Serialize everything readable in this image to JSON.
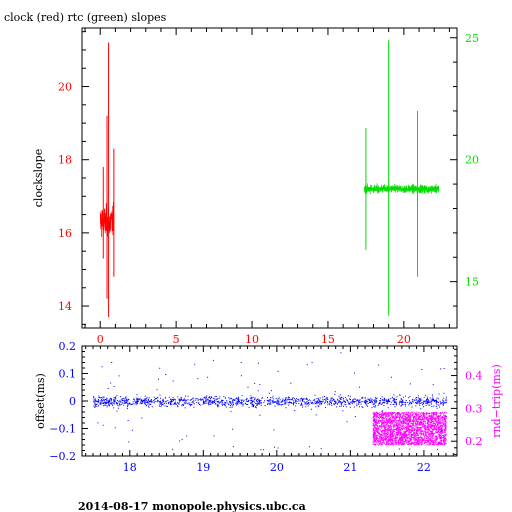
{
  "title": "clock (red) rtc (green) slopes",
  "footer": "2014-08-17 monopole.physics.ubc.ca",
  "colors": {
    "red": "#ff0000",
    "green": "#00dd00",
    "blue": "#0000ff",
    "magenta": "#ff00ff",
    "black": "#000000"
  },
  "chart_data": [
    {
      "type": "line",
      "title": "clock (red) rtc (green) slopes",
      "xlabel": "",
      "ylabel": "clockslope",
      "xlim": [
        -1.2,
        23.5
      ],
      "x_ticks": [
        "0",
        "5",
        "10",
        "15",
        "20"
      ],
      "y_left": {
        "lim": [
          13.4,
          21.6
        ],
        "ticks": [
          "14",
          "16",
          "18",
          "20"
        ],
        "color": "#ff0000"
      },
      "y_right": {
        "lim": [
          13.1,
          25.4
        ],
        "ticks": [
          "15",
          "20",
          "25"
        ],
        "color": "#00dd00"
      },
      "grid": false,
      "series": [
        {
          "name": "clock",
          "color": "#ff0000",
          "axis": "left",
          "x_range": [
            0.0,
            0.9
          ],
          "center": 16.3,
          "spikes": [
            {
              "x": 0.55,
              "y_min": 13.7,
              "y_max": 21.2
            },
            {
              "x": 0.45,
              "y_min": 14.2,
              "y_max": 19.2
            },
            {
              "x": 0.9,
              "y_min": 14.8,
              "y_max": 18.3
            },
            {
              "x": 0.2,
              "y_min": 15.3,
              "y_max": 17.8
            }
          ]
        },
        {
          "name": "rtc",
          "color": "#00dd00",
          "axis": "right",
          "x_range": [
            17.4,
            22.3
          ],
          "center": 18.8,
          "spikes": [
            {
              "x": 17.5,
              "y_min": 16.3,
              "y_max": 21.3
            },
            {
              "x": 19.0,
              "y_min": 13.6,
              "y_max": 24.9
            },
            {
              "x": 20.9,
              "y_min": 15.2,
              "y_max": 22.0
            }
          ]
        }
      ]
    },
    {
      "type": "scatter",
      "ylabel": "offset(ms)",
      "ylabel_right": "rnd−trip(ms)",
      "xlim": [
        17.35,
        22.45
      ],
      "x_ticks": [
        "18",
        "19",
        "20",
        "21",
        "22"
      ],
      "y_left": {
        "lim": [
          -0.2,
          0.2
        ],
        "ticks": [
          "−0.2",
          "−0.1",
          "0",
          "0.1",
          "0.2"
        ],
        "color": "#0000ff"
      },
      "y_right": {
        "lim": [
          0.155,
          0.49
        ],
        "ticks": [
          "0.2",
          "0.3",
          "0.4"
        ],
        "color": "#ff00ff"
      },
      "series": [
        {
          "name": "offset",
          "color": "#0000ff",
          "axis": "left",
          "x_range": [
            17.5,
            22.3
          ],
          "center": 0.0,
          "band": 0.02,
          "outliers_to": 0.18
        },
        {
          "name": "round-trip",
          "color": "#ff00ff",
          "axis": "right",
          "x_range": [
            21.3,
            22.3
          ],
          "y_range": [
            0.19,
            0.29
          ]
        }
      ]
    }
  ]
}
